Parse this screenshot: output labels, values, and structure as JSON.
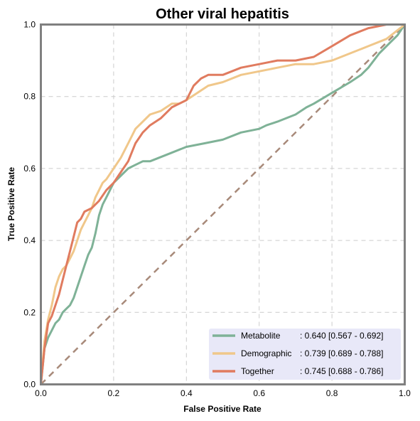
{
  "chart_data": {
    "type": "line",
    "title": "Other viral hepatitis",
    "xlabel": "False Positive Rate",
    "ylabel": "True Positive Rate",
    "xlim": [
      0,
      1
    ],
    "ylim": [
      0,
      1
    ],
    "x_ticks": [
      "0.0",
      "0.2",
      "0.4",
      "0.6",
      "0.8",
      "1.0"
    ],
    "y_ticks": [
      "0.0",
      "0.2",
      "0.4",
      "0.6",
      "0.8",
      "1.0"
    ],
    "grid": true,
    "legend_position": "bottom-right",
    "legend_background": "#e8e8f8",
    "diagonal_color": "#a88a7a",
    "series": [
      {
        "name": "Metabolite",
        "auc_label": ": 0.640 [0.567 - 0.692]",
        "color": "#7fb297",
        "points": [
          [
            0,
            0
          ],
          [
            0.005,
            0.05
          ],
          [
            0.01,
            0.1
          ],
          [
            0.02,
            0.13
          ],
          [
            0.03,
            0.15
          ],
          [
            0.04,
            0.17
          ],
          [
            0.05,
            0.18
          ],
          [
            0.06,
            0.2
          ],
          [
            0.07,
            0.21
          ],
          [
            0.08,
            0.22
          ],
          [
            0.09,
            0.24
          ],
          [
            0.1,
            0.27
          ],
          [
            0.11,
            0.3
          ],
          [
            0.12,
            0.33
          ],
          [
            0.13,
            0.36
          ],
          [
            0.14,
            0.38
          ],
          [
            0.15,
            0.42
          ],
          [
            0.16,
            0.47
          ],
          [
            0.17,
            0.5
          ],
          [
            0.18,
            0.52
          ],
          [
            0.2,
            0.56
          ],
          [
            0.22,
            0.58
          ],
          [
            0.24,
            0.6
          ],
          [
            0.26,
            0.61
          ],
          [
            0.28,
            0.62
          ],
          [
            0.3,
            0.62
          ],
          [
            0.35,
            0.64
          ],
          [
            0.4,
            0.66
          ],
          [
            0.45,
            0.67
          ],
          [
            0.5,
            0.68
          ],
          [
            0.55,
            0.7
          ],
          [
            0.6,
            0.71
          ],
          [
            0.62,
            0.72
          ],
          [
            0.65,
            0.73
          ],
          [
            0.7,
            0.75
          ],
          [
            0.73,
            0.77
          ],
          [
            0.75,
            0.78
          ],
          [
            0.8,
            0.81
          ],
          [
            0.85,
            0.84
          ],
          [
            0.88,
            0.86
          ],
          [
            0.9,
            0.88
          ],
          [
            0.93,
            0.92
          ],
          [
            0.96,
            0.95
          ],
          [
            0.98,
            0.97
          ],
          [
            1,
            1
          ]
        ]
      },
      {
        "name": "Demographic",
        "auc_label": ": 0.739 [0.689 - 0.788]",
        "color": "#f0c78a",
        "points": [
          [
            0,
            0
          ],
          [
            0.01,
            0.12
          ],
          [
            0.02,
            0.18
          ],
          [
            0.03,
            0.22
          ],
          [
            0.04,
            0.27
          ],
          [
            0.05,
            0.3
          ],
          [
            0.06,
            0.32
          ],
          [
            0.07,
            0.33
          ],
          [
            0.08,
            0.35
          ],
          [
            0.09,
            0.37
          ],
          [
            0.1,
            0.4
          ],
          [
            0.11,
            0.43
          ],
          [
            0.12,
            0.45
          ],
          [
            0.13,
            0.47
          ],
          [
            0.14,
            0.49
          ],
          [
            0.15,
            0.52
          ],
          [
            0.16,
            0.54
          ],
          [
            0.17,
            0.56
          ],
          [
            0.18,
            0.57
          ],
          [
            0.2,
            0.6
          ],
          [
            0.22,
            0.63
          ],
          [
            0.24,
            0.67
          ],
          [
            0.26,
            0.71
          ],
          [
            0.28,
            0.73
          ],
          [
            0.3,
            0.75
          ],
          [
            0.33,
            0.76
          ],
          [
            0.36,
            0.78
          ],
          [
            0.38,
            0.78
          ],
          [
            0.4,
            0.79
          ],
          [
            0.43,
            0.81
          ],
          [
            0.46,
            0.83
          ],
          [
            0.5,
            0.84
          ],
          [
            0.55,
            0.86
          ],
          [
            0.6,
            0.87
          ],
          [
            0.65,
            0.88
          ],
          [
            0.7,
            0.89
          ],
          [
            0.75,
            0.89
          ],
          [
            0.8,
            0.9
          ],
          [
            0.85,
            0.92
          ],
          [
            0.9,
            0.94
          ],
          [
            0.95,
            0.96
          ],
          [
            1,
            1
          ]
        ]
      },
      {
        "name": "Together",
        "auc_label": ": 0.745 [0.688 - 0.786]",
        "color": "#e07b5f",
        "points": [
          [
            0,
            0
          ],
          [
            0.01,
            0.1
          ],
          [
            0.02,
            0.17
          ],
          [
            0.03,
            0.19
          ],
          [
            0.04,
            0.22
          ],
          [
            0.05,
            0.25
          ],
          [
            0.06,
            0.29
          ],
          [
            0.07,
            0.33
          ],
          [
            0.08,
            0.37
          ],
          [
            0.09,
            0.41
          ],
          [
            0.1,
            0.45
          ],
          [
            0.11,
            0.46
          ],
          [
            0.12,
            0.48
          ],
          [
            0.14,
            0.49
          ],
          [
            0.16,
            0.51
          ],
          [
            0.18,
            0.54
          ],
          [
            0.2,
            0.56
          ],
          [
            0.22,
            0.59
          ],
          [
            0.24,
            0.62
          ],
          [
            0.26,
            0.67
          ],
          [
            0.28,
            0.7
          ],
          [
            0.3,
            0.72
          ],
          [
            0.33,
            0.74
          ],
          [
            0.36,
            0.77
          ],
          [
            0.38,
            0.78
          ],
          [
            0.4,
            0.79
          ],
          [
            0.42,
            0.83
          ],
          [
            0.44,
            0.85
          ],
          [
            0.46,
            0.86
          ],
          [
            0.5,
            0.86
          ],
          [
            0.55,
            0.88
          ],
          [
            0.6,
            0.89
          ],
          [
            0.65,
            0.9
          ],
          [
            0.7,
            0.9
          ],
          [
            0.75,
            0.91
          ],
          [
            0.8,
            0.94
          ],
          [
            0.85,
            0.97
          ],
          [
            0.9,
            0.99
          ],
          [
            0.95,
            1
          ],
          [
            1,
            1
          ]
        ]
      }
    ]
  }
}
